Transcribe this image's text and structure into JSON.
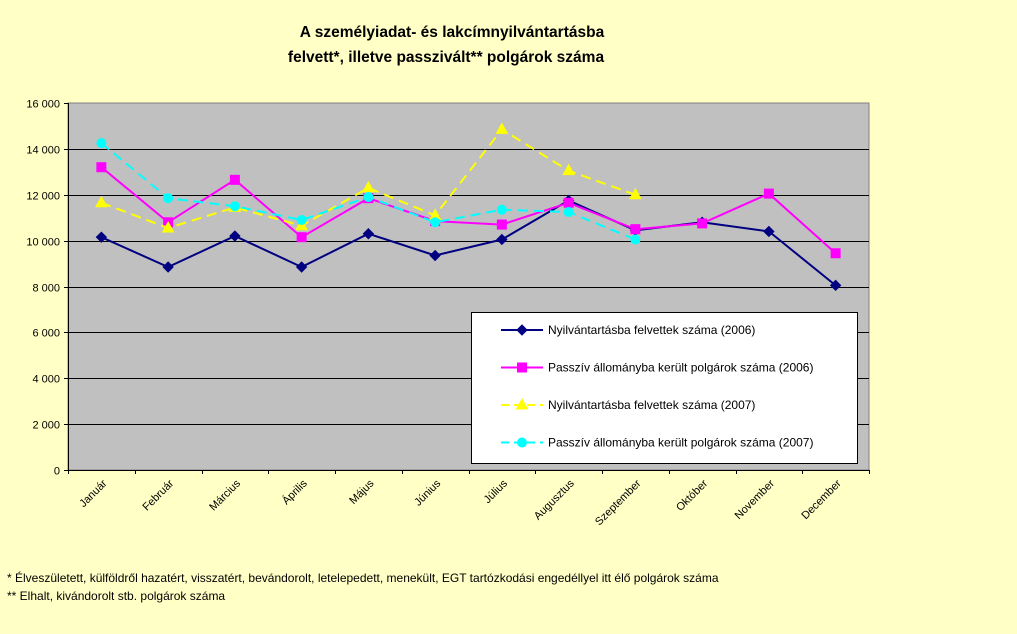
{
  "colors": {
    "background": "#ffffc6",
    "plot_area": "#c0c0c0",
    "series": [
      "#000080",
      "#ff00ff",
      "#ffff00",
      "#00ffff"
    ]
  },
  "footnotes": [
    "* Élveszületett, külföldről hazatért, visszatért, bevándorolt, letelepedett, menekült, EGT tartózkodási engedéllyel itt élő  polgárok száma",
    "** Elhalt, kivándorolt stb. polgárok száma"
  ],
  "chart_data": {
    "type": "line",
    "title_lines": [
      "A személyiadat- és lakcímnyilvántartásba",
      "felvett*, illetve passzivált** polgárok száma"
    ],
    "xlabel": "",
    "ylabel": "",
    "categories": [
      "Január",
      "Február",
      "Március",
      "Április",
      "Május",
      "Június",
      "Július",
      "Augusztus",
      "Szeptember",
      "Október",
      "November",
      "December"
    ],
    "ylim": [
      0,
      16000
    ],
    "yticks": [
      0,
      2000,
      4000,
      6000,
      8000,
      10000,
      12000,
      14000,
      16000
    ],
    "ytick_labels": [
      "0",
      "2 000",
      "4 000",
      "6 000",
      "8 000",
      "10 000",
      "12 000",
      "14 000",
      "16 000"
    ],
    "grid": true,
    "legend_position": "lower-right",
    "series": [
      {
        "name": "Nyilvántartásba felvettek száma (2006)",
        "color": "#000080",
        "marker": "diamond",
        "dashed": false,
        "values": [
          10150,
          8850,
          10200,
          8850,
          10300,
          9350,
          10050,
          11750,
          10450,
          10800,
          10400,
          8050
        ]
      },
      {
        "name": "Passzív állományba került polgárok száma (2006)",
        "color": "#ff00ff",
        "marker": "square",
        "dashed": false,
        "values": [
          13200,
          10800,
          12650,
          10150,
          11850,
          10850,
          10700,
          11650,
          10500,
          10750,
          12050,
          9450
        ]
      },
      {
        "name": "Nyilvántartásba felvettek száma (2007)",
        "color": "#ffff00",
        "marker": "triangle",
        "dashed": true,
        "values": [
          11650,
          10550,
          11450,
          10650,
          12300,
          11100,
          14850,
          13050,
          12000,
          null,
          null,
          null
        ]
      },
      {
        "name": "Passzív állományba került polgárok száma (2007)",
        "color": "#00ffff",
        "marker": "circle",
        "dashed": true,
        "values": [
          14250,
          11850,
          11500,
          10900,
          11900,
          10800,
          11350,
          11250,
          10050,
          null,
          null,
          null
        ]
      }
    ]
  }
}
